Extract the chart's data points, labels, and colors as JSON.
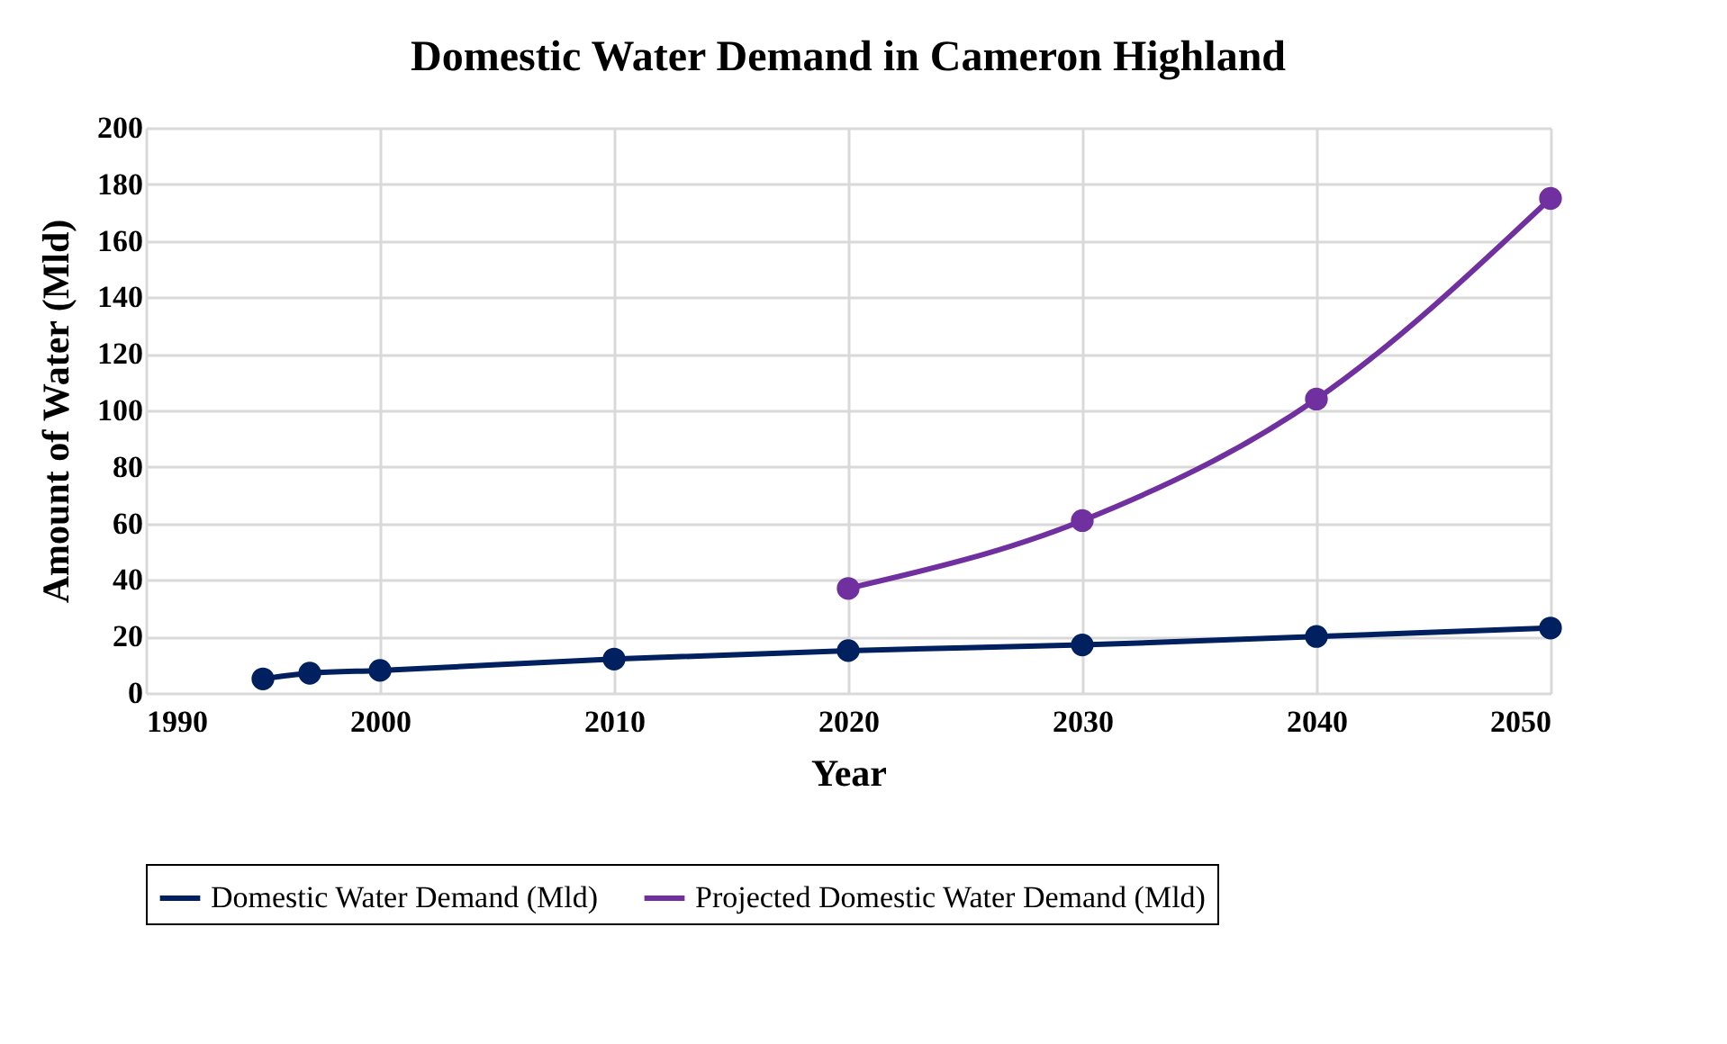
{
  "chart_data": {
    "type": "line",
    "title": "Domestic Water Demand in Cameron Highland",
    "xlabel": "Year",
    "ylabel": "Amount of Water (Mld)",
    "xlim": [
      1990,
      2050
    ],
    "xticks": [
      1990,
      2000,
      2010,
      2020,
      2030,
      2040,
      2050
    ],
    "ylim": [
      0,
      200
    ],
    "yticks": [
      0,
      20,
      40,
      60,
      80,
      100,
      120,
      140,
      160,
      180,
      200
    ],
    "grid": true,
    "legend": "bottom",
    "marker": "circle",
    "line_style": "solid",
    "series": [
      {
        "name": "Domestic Water Demand (Mld)",
        "color": "#002060",
        "x": [
          1995,
          1997,
          2000,
          2010,
          2020,
          2030,
          2040,
          2050
        ],
        "values": [
          5,
          7,
          8,
          12,
          15,
          17,
          20,
          23
        ]
      },
      {
        "name": "Projected Domestic Water Demand (Mld)",
        "color": "#7030a0",
        "x": [
          2020,
          2030,
          2040,
          2050
        ],
        "values": [
          37,
          61,
          104,
          175
        ]
      }
    ]
  }
}
